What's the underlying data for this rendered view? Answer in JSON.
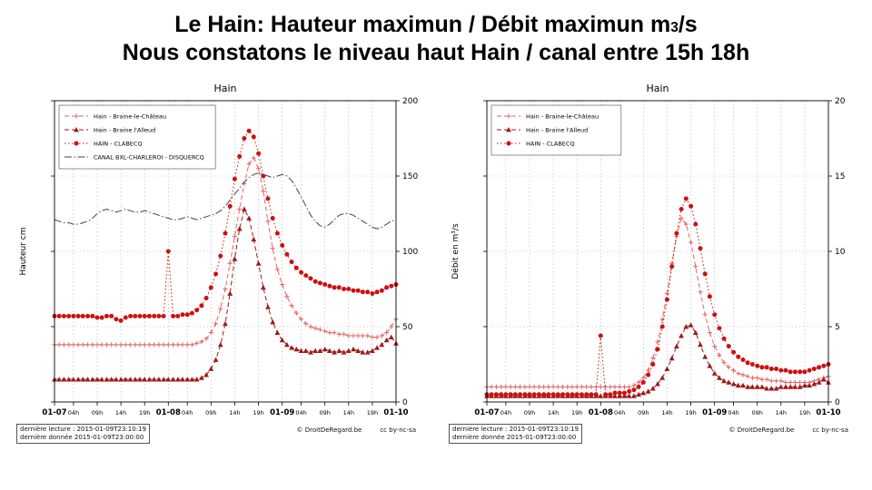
{
  "header": {
    "line1_prefix": "Le Hain: Hauteur maximun  / Débit maximun m",
    "line1_sub": "3",
    "line1_suffix": "/s",
    "line2": "Nous constatons le niveau haut Hain / canal entre 15h 18h"
  },
  "footer": {
    "lecture": "dernière lecture : 2015-01-09T23:10:19",
    "donnee": "dernière donnée  2015-01-09T23:00:00",
    "credit": "© DroitDeRegard.be",
    "license": "cc by-nc-sa"
  },
  "chart_data": [
    {
      "type": "line",
      "title": "Hain",
      "ylabel": "Hauteur cm",
      "ylim": [
        0,
        200
      ],
      "yticks": [
        0,
        50,
        100,
        150,
        200
      ],
      "x_hours": 72,
      "grid": true,
      "legend_position": "top-left",
      "xticks": [
        {
          "h": 0,
          "label": "01-07",
          "major": true
        },
        {
          "h": 4,
          "label": "04h",
          "major": false
        },
        {
          "h": 9,
          "label": "09h",
          "major": false
        },
        {
          "h": 14,
          "label": "14h",
          "major": false
        },
        {
          "h": 19,
          "label": "19h",
          "major": false
        },
        {
          "h": 24,
          "label": "01-08",
          "major": true
        },
        {
          "h": 28,
          "label": "04h",
          "major": false
        },
        {
          "h": 33,
          "label": "09h",
          "major": false
        },
        {
          "h": 38,
          "label": "14h",
          "major": false
        },
        {
          "h": 43,
          "label": "19h",
          "major": false
        },
        {
          "h": 48,
          "label": "01-09",
          "major": true
        },
        {
          "h": 52,
          "label": "04h",
          "major": false
        },
        {
          "h": 57,
          "label": "09h",
          "major": false
        },
        {
          "h": 62,
          "label": "14h",
          "major": false
        },
        {
          "h": 67,
          "label": "19h",
          "major": false
        },
        {
          "h": 72,
          "label": "01-10",
          "major": true
        }
      ],
      "series": [
        {
          "name": "Hain - Braine-le-Château",
          "color": "#e06666",
          "marker": "plus",
          "line": "dashed",
          "values": [
            38,
            38,
            38,
            38,
            38,
            38,
            38,
            38,
            38,
            38,
            38,
            38,
            38,
            38,
            38,
            38,
            38,
            38,
            38,
            38,
            38,
            38,
            38,
            38,
            38,
            38,
            38,
            38,
            38,
            38,
            39,
            40,
            42,
            46,
            52,
            62,
            75,
            92,
            110,
            128,
            145,
            158,
            162,
            155,
            140,
            120,
            102,
            88,
            78,
            70,
            64,
            59,
            55,
            52,
            50,
            49,
            48,
            47,
            46,
            46,
            45,
            45,
            44,
            44,
            44,
            44,
            44,
            43,
            43,
            44,
            46,
            50,
            55
          ]
        },
        {
          "name": "Hain - Braine l'Alleud",
          "color": "#9e1a1a",
          "marker": "triangle",
          "line": "dashed",
          "values": [
            15,
            15,
            15,
            15,
            15,
            15,
            15,
            15,
            15,
            15,
            15,
            15,
            15,
            15,
            15,
            15,
            15,
            15,
            15,
            15,
            15,
            15,
            15,
            15,
            15,
            15,
            15,
            15,
            15,
            15,
            15,
            16,
            18,
            22,
            28,
            38,
            52,
            72,
            95,
            115,
            128,
            122,
            108,
            92,
            76,
            63,
            53,
            46,
            41,
            38,
            36,
            35,
            34,
            34,
            33,
            34,
            34,
            35,
            34,
            33,
            34,
            33,
            34,
            35,
            34,
            33,
            33,
            34,
            36,
            38,
            41,
            43,
            39
          ]
        },
        {
          "name": "HAIN - CLABECQ",
          "color": "#cc1111",
          "marker": "circle",
          "line": "dotted",
          "values": [
            57,
            57,
            57,
            57,
            57,
            57,
            57,
            57,
            57,
            56,
            56,
            57,
            57,
            55,
            54,
            56,
            57,
            57,
            57,
            57,
            57,
            57,
            57,
            57,
            100,
            57,
            57,
            58,
            58,
            59,
            61,
            64,
            69,
            76,
            85,
            97,
            112,
            130,
            148,
            163,
            175,
            180,
            176,
            165,
            150,
            135,
            122,
            112,
            104,
            98,
            93,
            89,
            86,
            84,
            82,
            80,
            79,
            78,
            77,
            76,
            76,
            75,
            75,
            74,
            74,
            73,
            73,
            72,
            73,
            74,
            76,
            77,
            78
          ]
        },
        {
          "name": "CANAL BXL-CHARLEROI - DISQUERCQ",
          "color": "#444444",
          "marker": "none",
          "line": "dashdot",
          "values": [
            121,
            120,
            119,
            119,
            118,
            118,
            119,
            120,
            122,
            125,
            127,
            128,
            127,
            126,
            127,
            128,
            127,
            126,
            126,
            127,
            126,
            125,
            124,
            123,
            122,
            121,
            121,
            122,
            123,
            122,
            121,
            122,
            123,
            124,
            125,
            127,
            130,
            134,
            138,
            142,
            146,
            149,
            151,
            152,
            151,
            150,
            149,
            150,
            151,
            150,
            147,
            142,
            136,
            130,
            124,
            120,
            117,
            116,
            118,
            121,
            124,
            125,
            125,
            124,
            122,
            120,
            118,
            116,
            115,
            116,
            118,
            120,
            121
          ]
        }
      ]
    },
    {
      "type": "line",
      "title": "Hain",
      "ylabel": "Débit en m³/s",
      "ylim": [
        0,
        20
      ],
      "yticks": [
        0,
        5,
        10,
        15,
        20
      ],
      "x_hours": 72,
      "grid": true,
      "legend_position": "top-left",
      "xticks": [
        {
          "h": 0,
          "label": "01-07",
          "major": true
        },
        {
          "h": 4,
          "label": "04h",
          "major": false
        },
        {
          "h": 9,
          "label": "09h",
          "major": false
        },
        {
          "h": 14,
          "label": "14h",
          "major": false
        },
        {
          "h": 19,
          "label": "19h",
          "major": false
        },
        {
          "h": 24,
          "label": "01-08",
          "major": true
        },
        {
          "h": 28,
          "label": "04h",
          "major": false
        },
        {
          "h": 33,
          "label": "09h",
          "major": false
        },
        {
          "h": 38,
          "label": "14h",
          "major": false
        },
        {
          "h": 43,
          "label": "19h",
          "major": false
        },
        {
          "h": 48,
          "label": "01-09",
          "major": true
        },
        {
          "h": 52,
          "label": "04h",
          "major": false
        },
        {
          "h": 57,
          "label": "09h",
          "major": false
        },
        {
          "h": 62,
          "label": "14h",
          "major": false
        },
        {
          "h": 67,
          "label": "19h",
          "major": false
        },
        {
          "h": 72,
          "label": "01-10",
          "major": true
        }
      ],
      "series": [
        {
          "name": "Hain - Braine-le-Château",
          "color": "#e06666",
          "marker": "plus",
          "line": "dashed",
          "values": [
            1.0,
            1.0,
            1.0,
            1.0,
            1.0,
            1.0,
            1.0,
            1.0,
            1.0,
            1.0,
            1.0,
            1.0,
            1.0,
            1.0,
            1.0,
            1.0,
            1.0,
            1.0,
            1.0,
            1.0,
            1.0,
            1.0,
            1.0,
            1.0,
            1.0,
            1.0,
            1.0,
            1.0,
            1.0,
            1.0,
            1.0,
            1.1,
            1.3,
            1.6,
            2.1,
            2.9,
            4.0,
            5.5,
            7.2,
            9.2,
            11.0,
            12.2,
            11.8,
            10.6,
            9.0,
            7.3,
            5.8,
            4.6,
            3.7,
            3.1,
            2.6,
            2.3,
            2.1,
            1.9,
            1.8,
            1.7,
            1.6,
            1.6,
            1.5,
            1.5,
            1.4,
            1.4,
            1.4,
            1.3,
            1.3,
            1.3,
            1.3,
            1.3,
            1.3,
            1.4,
            1.5,
            1.6,
            1.7
          ]
        },
        {
          "name": "Hain - Braine l'Alleud",
          "color": "#9e1a1a",
          "marker": "triangle",
          "line": "dashed",
          "values": [
            0.4,
            0.4,
            0.4,
            0.4,
            0.4,
            0.4,
            0.4,
            0.4,
            0.4,
            0.4,
            0.4,
            0.4,
            0.4,
            0.4,
            0.4,
            0.4,
            0.4,
            0.4,
            0.4,
            0.4,
            0.4,
            0.4,
            0.4,
            0.4,
            0.4,
            0.4,
            0.4,
            0.4,
            0.4,
            0.4,
            0.4,
            0.4,
            0.5,
            0.6,
            0.7,
            0.9,
            1.2,
            1.6,
            2.2,
            2.9,
            3.7,
            4.4,
            5.0,
            5.1,
            4.6,
            3.8,
            3.0,
            2.4,
            1.9,
            1.6,
            1.4,
            1.3,
            1.2,
            1.1,
            1.1,
            1.0,
            1.0,
            1.0,
            1.0,
            0.9,
            0.9,
            0.9,
            1.0,
            1.0,
            1.0,
            1.0,
            1.0,
            1.1,
            1.1,
            1.2,
            1.3,
            1.5,
            1.3
          ]
        },
        {
          "name": "HAIN - CLABECQ",
          "color": "#cc1111",
          "marker": "circle",
          "line": "dotted",
          "values": [
            0.5,
            0.5,
            0.5,
            0.5,
            0.5,
            0.5,
            0.5,
            0.5,
            0.5,
            0.5,
            0.5,
            0.5,
            0.5,
            0.5,
            0.5,
            0.5,
            0.5,
            0.5,
            0.5,
            0.5,
            0.5,
            0.5,
            0.5,
            0.5,
            4.4,
            0.5,
            0.5,
            0.6,
            0.6,
            0.6,
            0.7,
            0.8,
            1.0,
            1.3,
            1.8,
            2.5,
            3.5,
            5.0,
            6.8,
            9.0,
            11.2,
            12.8,
            13.5,
            13.0,
            11.8,
            10.2,
            8.5,
            7.0,
            5.8,
            4.9,
            4.2,
            3.7,
            3.3,
            3.0,
            2.8,
            2.6,
            2.5,
            2.4,
            2.3,
            2.3,
            2.2,
            2.2,
            2.1,
            2.1,
            2.0,
            2.0,
            2.0,
            2.0,
            2.1,
            2.2,
            2.3,
            2.4,
            2.5
          ]
        }
      ]
    }
  ]
}
